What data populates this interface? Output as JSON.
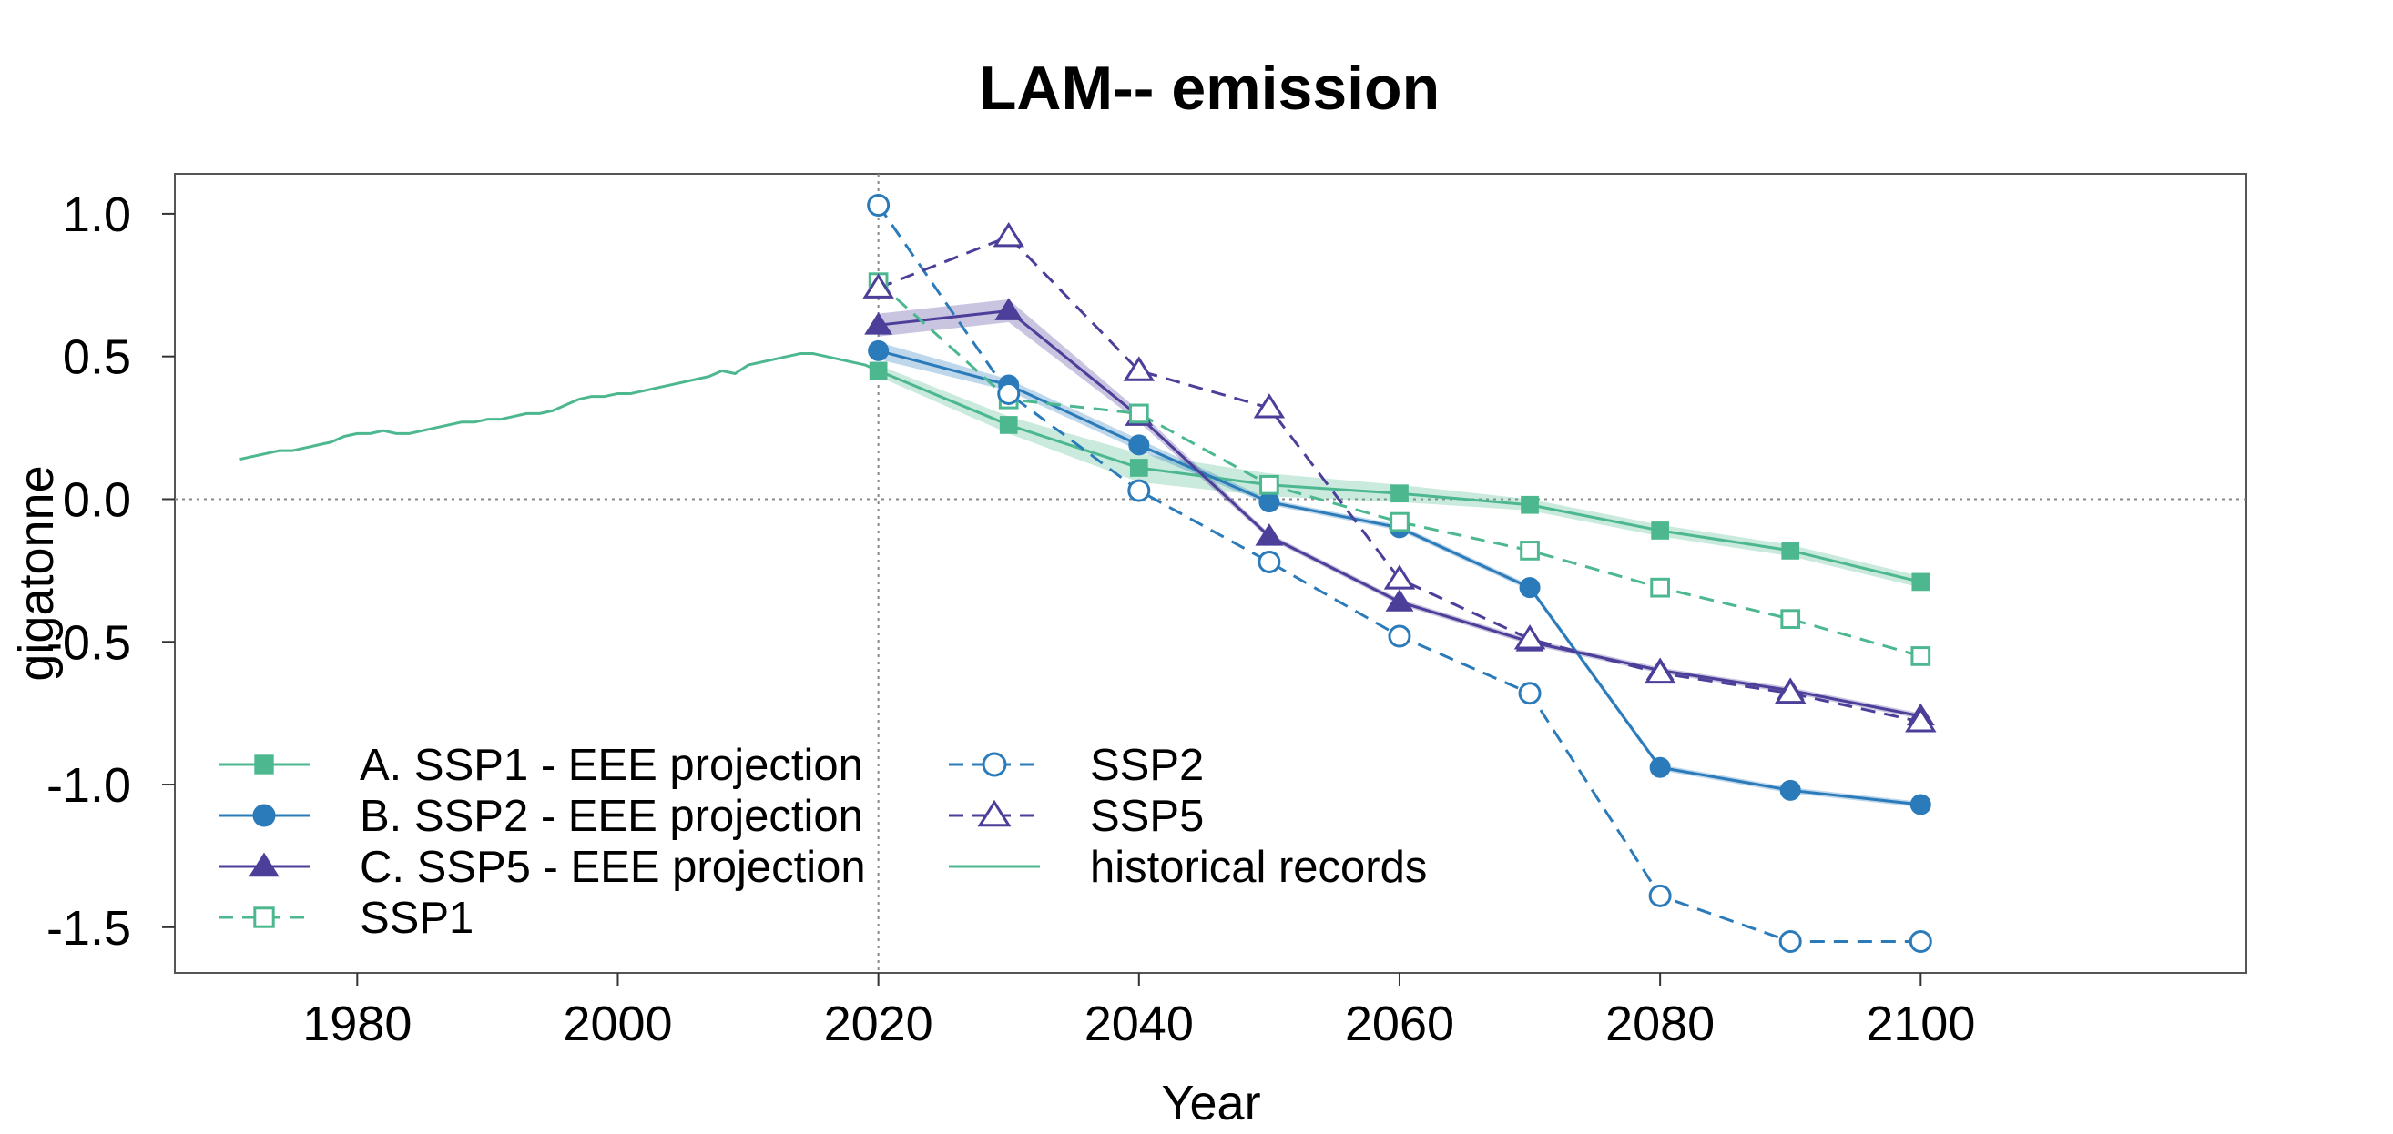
{
  "chart_data": {
    "type": "line",
    "title": "LAM-- emission",
    "xlabel": "Year",
    "ylabel": "gigatonne",
    "xlim": [
      1966,
      2125
    ],
    "ylim": [
      -1.66,
      1.14
    ],
    "x_ticks": [
      1980,
      2000,
      2020,
      2040,
      2060,
      2080,
      2100
    ],
    "x_tick_labels": [
      "1980",
      "2000",
      "2020",
      "2040",
      "2060",
      "2080",
      "2100"
    ],
    "y_ticks": [
      1.0,
      0.5,
      0.0,
      -0.5,
      -1.0,
      -1.5
    ],
    "y_tick_labels": [
      "1.0",
      "0.5",
      "0.0",
      "-0.5",
      "-1.0",
      "-1.5"
    ],
    "reference_lines": {
      "horizontal_y": 0.0,
      "vertical_x": 2020
    },
    "grid": false,
    "legend_position": "bottom-left",
    "series": [
      {
        "id": "ssp1-eee",
        "name": "A. SSP1 - EEE projection",
        "color": "#4DB88F",
        "style": "solid",
        "marker": "filled-square",
        "x": [
          2020,
          2030,
          2040,
          2050,
          2060,
          2070,
          2080,
          2090,
          2100
        ],
        "values": [
          0.45,
          0.26,
          0.11,
          0.05,
          0.02,
          -0.02,
          -0.11,
          -0.18,
          -0.29
        ],
        "band": [
          [
            0.43,
            0.47
          ],
          [
            0.23,
            0.29
          ],
          [
            0.06,
            0.16
          ],
          [
            0.01,
            0.09
          ],
          [
            -0.01,
            0.05
          ],
          [
            -0.04,
            0.0
          ],
          [
            -0.13,
            -0.09
          ],
          [
            -0.2,
            -0.16
          ],
          [
            -0.31,
            -0.27
          ]
        ]
      },
      {
        "id": "ssp2-eee",
        "name": "B. SSP2 - EEE projection",
        "color": "#2B7BBA",
        "style": "solid",
        "marker": "filled-circle",
        "x": [
          2020,
          2030,
          2040,
          2050,
          2060,
          2070,
          2080,
          2090,
          2100
        ],
        "values": [
          0.52,
          0.4,
          0.19,
          -0.01,
          -0.1,
          -0.31,
          -0.94,
          -1.02,
          -1.07
        ],
        "band": [
          [
            0.49,
            0.55
          ],
          [
            0.38,
            0.42
          ],
          [
            0.17,
            0.21
          ],
          [
            -0.02,
            0.0
          ],
          [
            -0.11,
            -0.09
          ],
          [
            -0.32,
            -0.3
          ],
          [
            -0.95,
            -0.93
          ],
          [
            -1.03,
            -1.01
          ],
          [
            -1.08,
            -1.06
          ]
        ]
      },
      {
        "id": "ssp5-eee",
        "name": "C. SSP5 - EEE projection",
        "color": "#4B3F99",
        "style": "solid",
        "marker": "filled-triangle",
        "x": [
          2020,
          2030,
          2040,
          2050,
          2060,
          2070,
          2080,
          2090,
          2100
        ],
        "values": [
          0.61,
          0.66,
          0.29,
          -0.13,
          -0.36,
          -0.5,
          -0.6,
          -0.67,
          -0.76
        ],
        "band": [
          [
            0.57,
            0.65
          ],
          [
            0.62,
            0.7
          ],
          [
            0.27,
            0.31
          ],
          [
            -0.14,
            -0.12
          ],
          [
            -0.37,
            -0.35
          ],
          [
            -0.51,
            -0.49
          ],
          [
            -0.61,
            -0.59
          ],
          [
            -0.68,
            -0.66
          ],
          [
            -0.77,
            -0.75
          ]
        ]
      },
      {
        "id": "ssp1",
        "name": "SSP1",
        "color": "#4DB88F",
        "style": "dashed",
        "marker": "open-square",
        "x": [
          2020,
          2030,
          2040,
          2050,
          2060,
          2070,
          2080,
          2090,
          2100
        ],
        "values": [
          0.76,
          0.35,
          0.3,
          0.05,
          -0.08,
          -0.18,
          -0.31,
          -0.42,
          -0.55
        ]
      },
      {
        "id": "ssp2",
        "name": "SSP2",
        "color": "#2B7BBA",
        "style": "dashed",
        "marker": "open-circle",
        "x": [
          2020,
          2030,
          2040,
          2050,
          2060,
          2070,
          2080,
          2090,
          2100
        ],
        "values": [
          1.03,
          0.37,
          0.03,
          -0.22,
          -0.48,
          -0.68,
          -1.39,
          -1.55,
          -1.55
        ]
      },
      {
        "id": "ssp5",
        "name": "SSP5",
        "color": "#4B3F99",
        "style": "dashed",
        "marker": "open-triangle",
        "x": [
          2020,
          2030,
          2040,
          2050,
          2060,
          2070,
          2080,
          2090,
          2100
        ],
        "values": [
          0.74,
          0.92,
          0.45,
          0.32,
          -0.28,
          -0.49,
          -0.61,
          -0.68,
          -0.78
        ]
      },
      {
        "id": "historical",
        "name": "historical records",
        "color": "#4DB88F",
        "style": "solid",
        "marker": "none",
        "x": [
          1971,
          1972,
          1973,
          1974,
          1975,
          1976,
          1977,
          1978,
          1979,
          1980,
          1981,
          1982,
          1983,
          1984,
          1985,
          1986,
          1987,
          1988,
          1989,
          1990,
          1991,
          1992,
          1993,
          1994,
          1995,
          1996,
          1997,
          1998,
          1999,
          2000,
          2001,
          2002,
          2003,
          2004,
          2005,
          2006,
          2007,
          2008,
          2009,
          2010,
          2011,
          2012,
          2013,
          2014,
          2015,
          2016,
          2017,
          2018,
          2019,
          2020
        ],
        "values": [
          0.14,
          0.15,
          0.16,
          0.17,
          0.17,
          0.18,
          0.19,
          0.2,
          0.22,
          0.23,
          0.23,
          0.24,
          0.23,
          0.23,
          0.24,
          0.25,
          0.26,
          0.27,
          0.27,
          0.28,
          0.28,
          0.29,
          0.3,
          0.3,
          0.31,
          0.33,
          0.35,
          0.36,
          0.36,
          0.37,
          0.37,
          0.38,
          0.39,
          0.4,
          0.41,
          0.42,
          0.43,
          0.45,
          0.44,
          0.47,
          0.48,
          0.49,
          0.5,
          0.51,
          0.51,
          0.5,
          0.49,
          0.48,
          0.47,
          0.45
        ]
      }
    ],
    "legend_order": [
      "ssp1-eee",
      "ssp2-eee",
      "ssp5-eee",
      "ssp1",
      "ssp2",
      "ssp5",
      "historical"
    ]
  }
}
